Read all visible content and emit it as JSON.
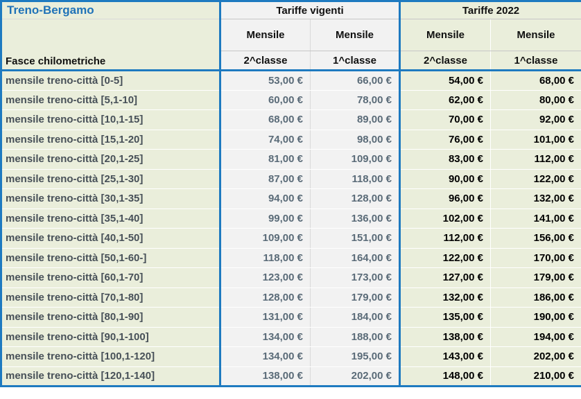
{
  "header": {
    "title": "Treno-Bergamo",
    "corner_label": "Fasce chilometriche",
    "groups": [
      {
        "label": "Tariffe vigenti",
        "sub": [
          "Mensile",
          "Mensile"
        ],
        "classes": [
          "2^classe",
          "1^classe"
        ]
      },
      {
        "label": "Tariffe 2022",
        "sub": [
          "Mensile",
          "Mensile"
        ],
        "classes": [
          "2^classe",
          "1^classe"
        ]
      }
    ]
  },
  "rows": [
    {
      "label": "mensile treno-città [0-5]",
      "vigenti": [
        "53,00 €",
        "66,00 €"
      ],
      "t2022": [
        "54,00 €",
        "68,00 €"
      ]
    },
    {
      "label": "mensile treno-città [5,1-10]",
      "vigenti": [
        "60,00 €",
        "78,00 €"
      ],
      "t2022": [
        "62,00 €",
        "80,00 €"
      ]
    },
    {
      "label": "mensile treno-città [10,1-15]",
      "vigenti": [
        "68,00 €",
        "89,00 €"
      ],
      "t2022": [
        "70,00 €",
        "92,00 €"
      ]
    },
    {
      "label": "mensile treno-città [15,1-20]",
      "vigenti": [
        "74,00 €",
        "98,00 €"
      ],
      "t2022": [
        "76,00 €",
        "101,00 €"
      ]
    },
    {
      "label": "mensile treno-città [20,1-25]",
      "vigenti": [
        "81,00 €",
        "109,00 €"
      ],
      "t2022": [
        "83,00 €",
        "112,00 €"
      ]
    },
    {
      "label": "mensile treno-città [25,1-30]",
      "vigenti": [
        "87,00 €",
        "118,00 €"
      ],
      "t2022": [
        "90,00 €",
        "122,00 €"
      ]
    },
    {
      "label": "mensile treno-città [30,1-35]",
      "vigenti": [
        "94,00 €",
        "128,00 €"
      ],
      "t2022": [
        "96,00 €",
        "132,00 €"
      ]
    },
    {
      "label": "mensile treno-città [35,1-40]",
      "vigenti": [
        "99,00 €",
        "136,00 €"
      ],
      "t2022": [
        "102,00 €",
        "141,00 €"
      ]
    },
    {
      "label": "mensile treno-città [40,1-50]",
      "vigenti": [
        "109,00 €",
        "151,00 €"
      ],
      "t2022": [
        "112,00 €",
        "156,00 €"
      ]
    },
    {
      "label": "mensile treno-città [50,1-60-]",
      "vigenti": [
        "118,00 €",
        "164,00 €"
      ],
      "t2022": [
        "122,00 €",
        "170,00 €"
      ]
    },
    {
      "label": "mensile treno-città [60,1-70]",
      "vigenti": [
        "123,00 €",
        "173,00 €"
      ],
      "t2022": [
        "127,00 €",
        "179,00 €"
      ]
    },
    {
      "label": "mensile treno-città [70,1-80]",
      "vigenti": [
        "128,00 €",
        "179,00 €"
      ],
      "t2022": [
        "132,00 €",
        "186,00 €"
      ]
    },
    {
      "label": "mensile treno-città [80,1-90]",
      "vigenti": [
        "131,00 €",
        "184,00 €"
      ],
      "t2022": [
        "135,00 €",
        "190,00 €"
      ]
    },
    {
      "label": "mensile treno-città [90,1-100]",
      "vigenti": [
        "134,00 €",
        "188,00 €"
      ],
      "t2022": [
        "138,00 €",
        "194,00 €"
      ]
    },
    {
      "label": "mensile treno-città [100,1-120]",
      "vigenti": [
        "134,00 €",
        "195,00 €"
      ],
      "t2022": [
        "143,00 €",
        "202,00 €"
      ]
    },
    {
      "label": "mensile treno-città [120,1-140]",
      "vigenti": [
        "138,00 €",
        "202,00 €"
      ],
      "t2022": [
        "148,00 €",
        "210,00 €"
      ]
    }
  ],
  "colors": {
    "border_blue": "#1E7AC0",
    "title_blue": "#1F72B8",
    "green_bg": "#EAEEDB",
    "gray_bg": "#F2F2F2",
    "label_text": "#475058",
    "vigenti_text": "#5A6B78",
    "t2022_text": "#000000"
  }
}
